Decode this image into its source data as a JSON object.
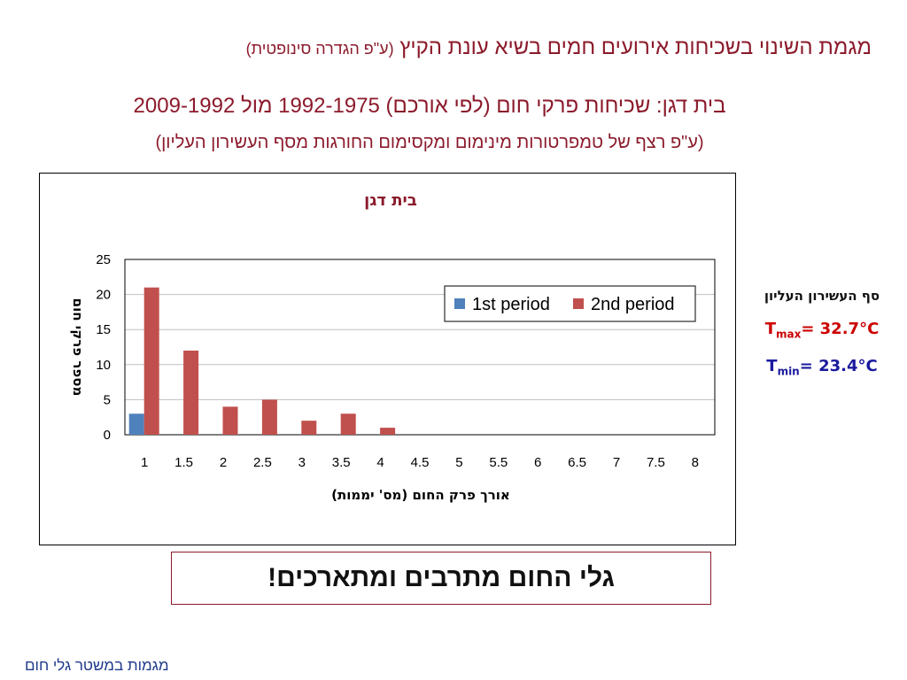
{
  "slide": {
    "title_main": "מגמת השינוי בשכיחות אירועים חמים בשיא עונת הקיץ",
    "title_note": "(ע\"פ הגדרה סינופטית)",
    "subtitle_line1": "בית דגן: שכיחות פרקי חום (לפי אורכם) 1992-1975 מול 2009-1992",
    "subtitle_line2": "(ע\"פ רצף של טמפרטורות מינימום ומקסימום החורגות מסף העשירון העליון)",
    "side_panel": {
      "label": "סף העשירון העליון",
      "tmax": {
        "symbol": "T",
        "sub": "max",
        "value": "= 32.7°C"
      },
      "tmin": {
        "symbol": "T",
        "sub": "min",
        "value": "= 23.4°C"
      }
    },
    "callout": "גלי החום מתרבים ומתארכים!",
    "footer": "מגמות במשטר גלי חום"
  },
  "chart_data": {
    "type": "bar",
    "title": "בית דגן",
    "xlabel": "אורך פרק החום (מס' יממות)",
    "ylabel": "מספר פרקי חום",
    "categories": [
      "1",
      "1.5",
      "2",
      "2.5",
      "3",
      "3.5",
      "4",
      "4.5",
      "5",
      "5.5",
      "6",
      "6.5",
      "7",
      "7.5",
      "8"
    ],
    "ylim": [
      0,
      25
    ],
    "yticks": [
      "0",
      "5",
      "10",
      "15",
      "20",
      "25"
    ],
    "grid": true,
    "legend_position": "top-right",
    "series": [
      {
        "name": "1st period",
        "color": "#4f81bd",
        "values": [
          3,
          0,
          0,
          0,
          0,
          0,
          0,
          0,
          0,
          0,
          0,
          0,
          0,
          0,
          0
        ]
      },
      {
        "name": "2nd period",
        "color": "#c0504d",
        "values": [
          21,
          12,
          4,
          5,
          2,
          3,
          1,
          0,
          0,
          0,
          0,
          0,
          0,
          0,
          0
        ]
      }
    ]
  }
}
